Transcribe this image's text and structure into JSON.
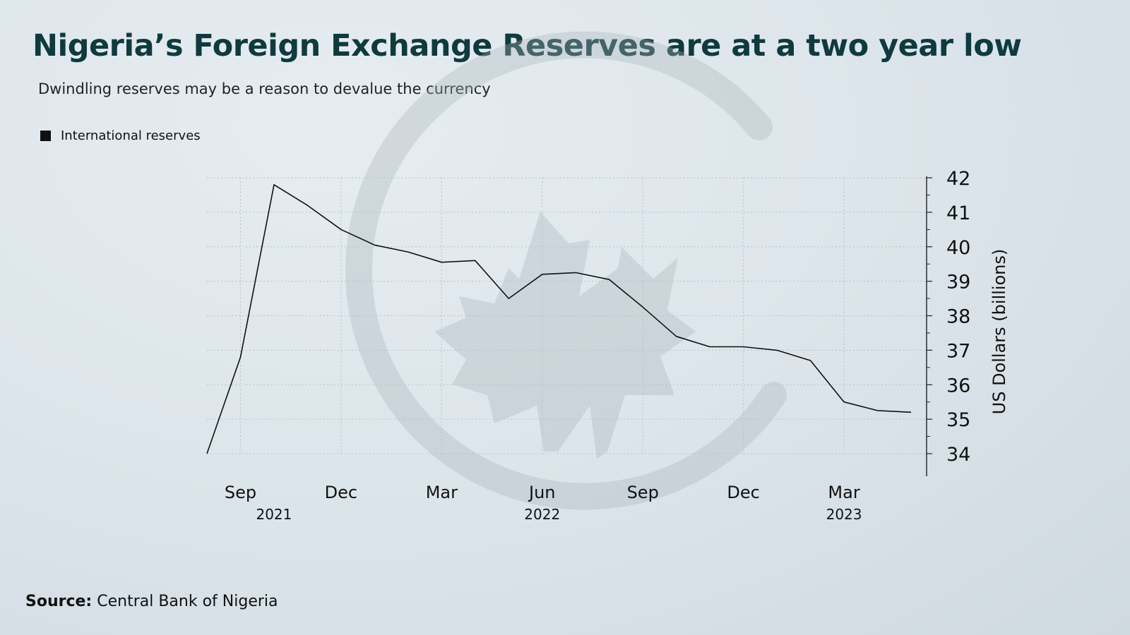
{
  "title": "Nigeria’s Foreign Exchange Reserves are at a two year low",
  "subtitle": "Dwindling reserves may be a reason to devalue the currency",
  "source_label": "Source:",
  "source_text": "Central Bank of Nigeria",
  "colors": {
    "title": "#0f3a3e",
    "line": "#111111",
    "grid": "#b8c2c8",
    "watermark": "#b7c1c7"
  },
  "chart_data": {
    "type": "line",
    "title": "Nigeria’s Foreign Exchange Reserves are at a two year low",
    "subtitle": "Dwindling reserves may be a reason to devalue the currency",
    "ylabel": "US Dollars (billions)",
    "xlabel": "",
    "ylim": [
      33.4,
      42
    ],
    "y_axis_side": "right",
    "y_ticks": [
      34,
      35,
      36,
      37,
      38,
      39,
      40,
      41,
      42
    ],
    "x_ticks": [
      {
        "label": "Sep",
        "date": "2021-09"
      },
      {
        "label": "Dec",
        "date": "2021-12"
      },
      {
        "label": "Mar",
        "date": "2022-03"
      },
      {
        "label": "Jun",
        "date": "2022-06"
      },
      {
        "label": "Sep",
        "date": "2022-09"
      },
      {
        "label": "Dec",
        "date": "2022-12"
      },
      {
        "label": "Mar",
        "date": "2023-03"
      }
    ],
    "year_labels": [
      {
        "label": "2021",
        "date": "2021-10"
      },
      {
        "label": "2022",
        "date": "2022-06"
      },
      {
        "label": "2023",
        "date": "2023-03"
      }
    ],
    "grid": true,
    "legend": {
      "position": "top-left",
      "entries": [
        "International reserves"
      ]
    },
    "series": [
      {
        "name": "International reserves",
        "points": [
          {
            "x": "2021-08",
            "y": 34.0
          },
          {
            "x": "2021-09",
            "y": 36.8
          },
          {
            "x": "2021-10",
            "y": 41.8
          },
          {
            "x": "2021-11",
            "y": 41.2
          },
          {
            "x": "2021-12",
            "y": 40.5
          },
          {
            "x": "2022-01",
            "y": 40.05
          },
          {
            "x": "2022-02",
            "y": 39.85
          },
          {
            "x": "2022-03",
            "y": 39.55
          },
          {
            "x": "2022-04",
            "y": 39.6
          },
          {
            "x": "2022-05",
            "y": 38.5
          },
          {
            "x": "2022-06",
            "y": 39.2
          },
          {
            "x": "2022-07",
            "y": 39.25
          },
          {
            "x": "2022-08",
            "y": 39.05
          },
          {
            "x": "2022-09",
            "y": 38.25
          },
          {
            "x": "2022-10",
            "y": 37.4
          },
          {
            "x": "2022-11",
            "y": 37.1
          },
          {
            "x": "2022-12",
            "y": 37.1
          },
          {
            "x": "2023-01",
            "y": 37.0
          },
          {
            "x": "2023-02",
            "y": 36.7
          },
          {
            "x": "2023-03",
            "y": 35.5
          },
          {
            "x": "2023-04",
            "y": 35.25
          },
          {
            "x": "2023-05",
            "y": 35.2
          }
        ]
      }
    ]
  }
}
